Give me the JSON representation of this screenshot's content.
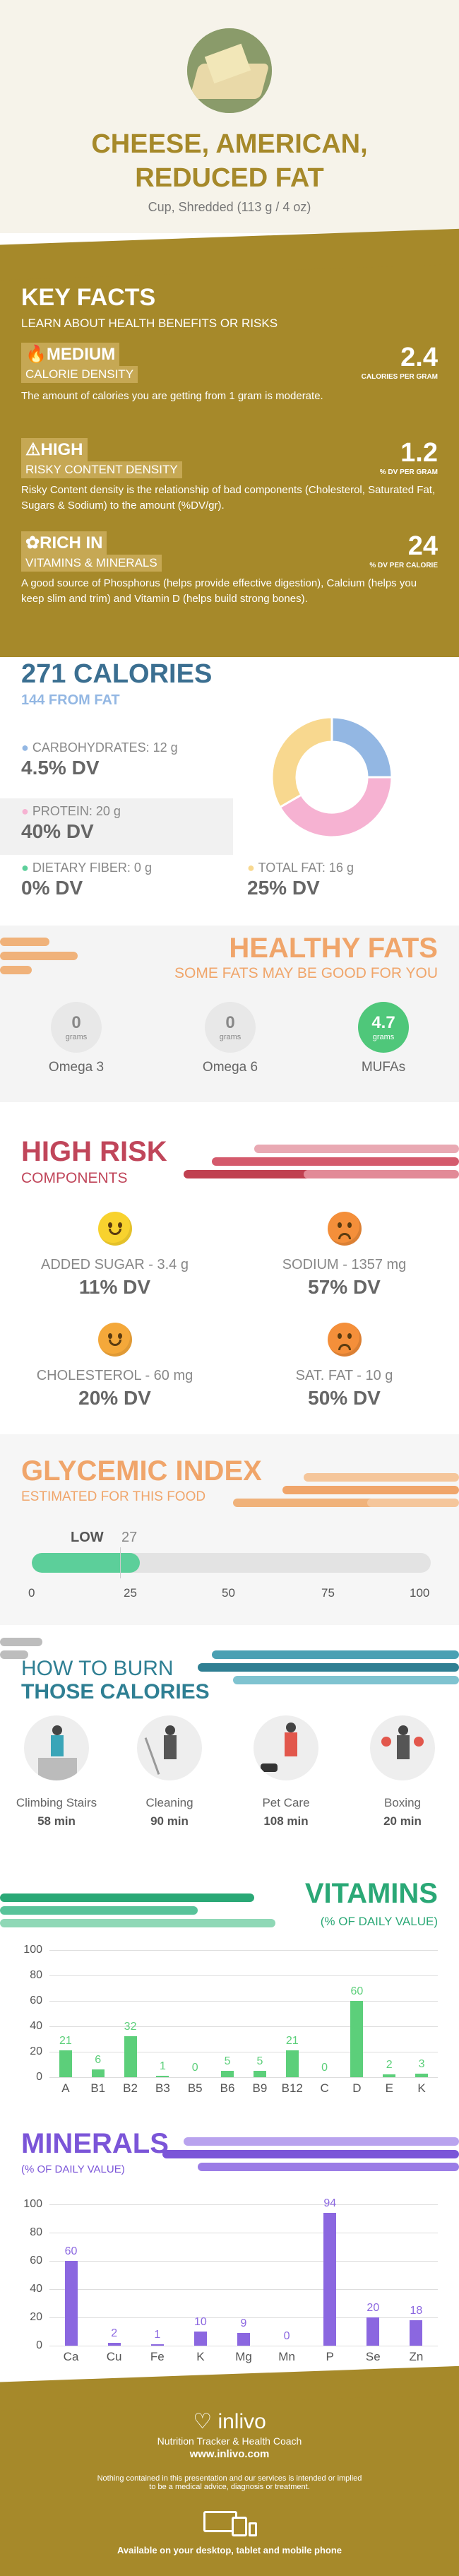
{
  "header": {
    "title_line1": "CHEESE, AMERICAN,",
    "title_line2": "REDUCED FAT",
    "serving": "Cup, Shredded (113 g / 4 oz)"
  },
  "key_facts": {
    "title": "KEY FACTS",
    "subtitle": "LEARN ABOUT HEALTH BENEFITS OR RISKS",
    "calorie": {
      "level": "MEDIUM",
      "name": "CALORIE DENSITY",
      "value": "2.4",
      "unit": "CALORIES PER GRAM",
      "desc": "The amount of calories you are getting from 1 gram is moderate."
    },
    "risk": {
      "level": "HIGH",
      "name": "RISKY CONTENT DENSITY",
      "value": "1.2",
      "unit": "% DV PER GRAM",
      "desc": "Risky Content density is the relationship of bad components (Cholesterol, Saturated Fat, Sugars & Sodium) to the amount (%DV/gr)."
    },
    "rich": {
      "level": "RICH  IN",
      "name": "VITAMINS & MINERALS",
      "value": "24",
      "unit": "% DV PER CALORIE",
      "desc": "A good source of Phosphorus (helps provide effective digestion), Calcium (helps you keep slim and trim) and Vitamin D (helps build strong bones)."
    }
  },
  "calories": {
    "title": "271 CALORIES",
    "sub": "144 FROM FAT",
    "carbs_label": "CARBOHYDRATES: 12 g",
    "carbs_dv": "4.5% DV",
    "protein_label": "PROTEIN: 20 g",
    "protein_dv": "40% DV",
    "fiber_label": "DIETARY FIBER: 0 g",
    "fiber_dv": "0% DV",
    "fat_label": "TOTAL FAT: 16 g",
    "fat_dv": "25% DV",
    "donut": {
      "carbs": 12,
      "protein": 20,
      "fat": 16
    },
    "colors": {
      "carbs": "#93b7e3",
      "protein": "#f6b2d2",
      "fat": "#f8d88f",
      "fiber": "#5ccf9a"
    }
  },
  "healthy_fats": {
    "title": "HEALTHY FATS",
    "sub": "SOME FATS MAY BE GOOD FOR YOU",
    "items": [
      {
        "value": "0",
        "unit": "grams",
        "label": "Omega 3"
      },
      {
        "value": "0",
        "unit": "grams",
        "label": "Omega 6"
      },
      {
        "value": "4.7",
        "unit": "grams",
        "label": "MUFAs"
      }
    ]
  },
  "high_risk": {
    "title": "HIGH RISK",
    "sub": "COMPONENTS",
    "items": [
      {
        "label": "ADDED SUGAR - 3.4 g",
        "dv": "11% DV",
        "face": "smile"
      },
      {
        "label": "SODIUM - 1357 mg",
        "dv": "57% DV",
        "face": "frown"
      },
      {
        "label": "CHOLESTEROL - 60 mg",
        "dv": "20% DV",
        "face": "smile"
      },
      {
        "label": "SAT. FAT - 10 g",
        "dv": "50% DV",
        "face": "frown"
      }
    ]
  },
  "glycemic": {
    "title": "GLYCEMIC INDEX",
    "sub": "ESTIMATED FOR THIS FOOD",
    "level": "LOW",
    "value": 27,
    "value_label": "27",
    "ticks": [
      "0",
      "25",
      "50",
      "75",
      "100"
    ]
  },
  "burn": {
    "title1": "HOW TO BURN",
    "title2": "THOSE CALORIES",
    "items": [
      {
        "label": "Climbing Stairs",
        "time": "58 min"
      },
      {
        "label": "Cleaning",
        "time": "90 min"
      },
      {
        "label": "Pet Care",
        "time": "108 min"
      },
      {
        "label": "Boxing",
        "time": "20 min"
      }
    ]
  },
  "vitamins": {
    "title": "VITAMINS",
    "sub": "(% OF DAILY VALUE)"
  },
  "minerals": {
    "title": "MINERALS",
    "sub": "(% OF DAILY VALUE)"
  },
  "chart_data": [
    {
      "type": "bar",
      "title": "VITAMINS",
      "ylim": [
        0,
        100
      ],
      "yticks": [
        "0",
        "20",
        "40",
        "60",
        "80",
        "100"
      ],
      "categories": [
        "A",
        "B1",
        "B2",
        "B3",
        "B5",
        "B6",
        "B9",
        "B12",
        "C",
        "D",
        "E",
        "K"
      ],
      "values": [
        21,
        6,
        32,
        1,
        0,
        5,
        5,
        21,
        0,
        60,
        2,
        3
      ],
      "color": "#5ccf7a"
    },
    {
      "type": "bar",
      "title": "MINERALS",
      "ylim": [
        0,
        100
      ],
      "yticks": [
        "0",
        "20",
        "40",
        "60",
        "80",
        "100"
      ],
      "categories": [
        "Ca",
        "Cu",
        "Fe",
        "K",
        "Mg",
        "Mn",
        "P",
        "Se",
        "Zn"
      ],
      "values": [
        60,
        2,
        1,
        10,
        9,
        0,
        94,
        20,
        18
      ],
      "color": "#8b67e0"
    }
  ],
  "footer": {
    "brand": "inlivo",
    "tag": "Nutrition Tracker & Health Coach",
    "url": "www.inlivo.com",
    "disclaimer1": "Nothing contained in this presentation and our services is intended or implied",
    "disclaimer2": "to be a medical advice, diagnosis or treatment.",
    "available": "Available on your desktop, tablet and mobile phone"
  }
}
